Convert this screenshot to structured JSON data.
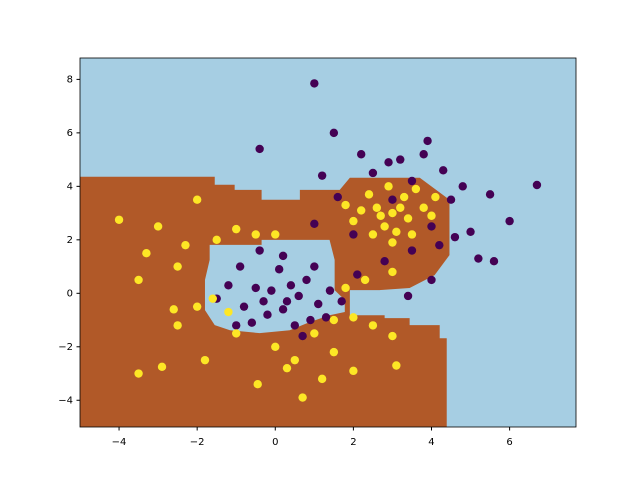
{
  "chart_data": {
    "type": "scatter",
    "xlim": [
      -5,
      7.7
    ],
    "ylim": [
      -5,
      8.8
    ],
    "xticks": [
      {
        "value": -4,
        "label": "−4"
      },
      {
        "value": -2,
        "label": "−2"
      },
      0,
      2,
      4,
      6
    ],
    "yticks": [
      {
        "value": -4,
        "label": "−4"
      },
      {
        "value": -2,
        "label": "−2"
      },
      0,
      2,
      4,
      6,
      8
    ],
    "background": "#a6cee3",
    "regions": [
      {
        "color": "#b15928",
        "polygons": [
          [
            [
              -5,
              4.36
            ],
            [
              -1.55,
              4.36
            ],
            [
              -1.55,
              4.06
            ],
            [
              -1.04,
              4.06
            ],
            [
              -1.04,
              3.87
            ],
            [
              -0.35,
              3.87
            ],
            [
              -0.35,
              3.5
            ],
            [
              0.63,
              3.5
            ],
            [
              0.63,
              3.87
            ],
            [
              1.65,
              3.87
            ],
            [
              1.91,
              4.32
            ],
            [
              3.7,
              4.32
            ],
            [
              4.46,
              3.5
            ],
            [
              4.46,
              1.43
            ],
            [
              4.08,
              0.68
            ],
            [
              3.44,
              0.2
            ],
            [
              2.67,
              0.12
            ],
            [
              1.91,
              0.12
            ],
            [
              1.91,
              -0.82
            ],
            [
              2.8,
              -0.82
            ],
            [
              2.8,
              -0.93
            ],
            [
              3.44,
              -0.93
            ],
            [
              3.44,
              -1.19
            ],
            [
              4.21,
              -1.19
            ],
            [
              4.21,
              -1.68
            ],
            [
              4.39,
              -1.68
            ],
            [
              4.39,
              -5
            ],
            [
              -5,
              -5
            ]
          ],
          [
            [
              -1.68,
              1.81
            ],
            [
              -0.35,
              1.81
            ],
            [
              -0.35,
              2
            ],
            [
              1.39,
              2
            ],
            [
              1.52,
              1.25
            ],
            [
              1.52,
              0.12
            ],
            [
              1.78,
              -0.25
            ],
            [
              1.78,
              -0.7
            ],
            [
              1.39,
              -0.82
            ],
            [
              0.88,
              -1.08
            ],
            [
              0.37,
              -1.38
            ],
            [
              -0.4,
              -1.49
            ],
            [
              -1.16,
              -1.38
            ],
            [
              -1.55,
              -1.19
            ],
            [
              -1.8,
              -0.63
            ],
            [
              -1.8,
              0.5
            ],
            [
              -1.68,
              1.25
            ]
          ]
        ]
      }
    ],
    "series": [
      {
        "color": "#440154",
        "x": [
          0.3,
          -0.5,
          0.8,
          1.1,
          -0.2,
          0.5,
          -0.8,
          0.1,
          -1.2,
          1.4,
          0.6,
          -0.1,
          0.9,
          -0.6,
          0.2,
          1,
          -1,
          0.4,
          -0.3,
          1.3,
          -1.5,
          0.7,
          -0.9,
          0.2,
          1.7,
          -0.4,
          3,
          2.5,
          3.5,
          4,
          2,
          4.5,
          3.2,
          1.6,
          5,
          4.8,
          2.2,
          3.8,
          5.5,
          4.2,
          1.2,
          5.2,
          3.5,
          2.8,
          4.6,
          3.9,
          1,
          5.6,
          2.9,
          4.3,
          6,
          1,
          6.7,
          -0.4,
          1.5,
          4,
          3.4,
          2.1
        ],
        "y": [
          -0.3,
          0.2,
          0.5,
          -0.4,
          -0.8,
          -1.2,
          -0.5,
          0.9,
          0.3,
          0.1,
          -0.1,
          0.1,
          -1,
          -1.1,
          1.4,
          1,
          -1.2,
          0.3,
          -0.3,
          -0.9,
          -0.2,
          -1.6,
          1,
          -0.6,
          -0.3,
          1.6,
          3.5,
          4.5,
          4.2,
          2.5,
          2.2,
          3.5,
          5,
          3.6,
          2.3,
          4,
          5.2,
          5.2,
          3.7,
          1.8,
          4.4,
          1.3,
          1.6,
          1.2,
          2.1,
          5.7,
          2.6,
          1.2,
          4.9,
          4.6,
          2.7,
          7.85,
          4.05,
          5.4,
          6,
          0.5,
          -0.1,
          0.7
        ]
      },
      {
        "color": "#fde725",
        "x": [
          -2,
          -3,
          -2.5,
          -1.5,
          -3.5,
          -2,
          -2.5,
          -1.8,
          -1,
          0,
          1,
          1.5,
          2,
          2.5,
          3,
          -1,
          -0.5,
          0,
          -2.3,
          -3.3,
          -1.6,
          1.8,
          2.3,
          3,
          1.5,
          0.5,
          -1.2,
          -4,
          -3.5,
          -2.9,
          0.7,
          -0.45,
          2,
          3.1,
          1.2,
          0.3,
          -2.6,
          3,
          2.6,
          3.4,
          2.8,
          3.3,
          2.2,
          3.8,
          2.5,
          3.1,
          3.6,
          2.4,
          4,
          2.9,
          3.5,
          2,
          2.7,
          3.2,
          1.8,
          4.1,
          3
        ],
        "y": [
          3.5,
          2.5,
          1,
          2,
          0.5,
          -0.5,
          -1.2,
          -2.5,
          -1.5,
          -2,
          -1.5,
          -1,
          -0.9,
          -1.2,
          -1.6,
          2.4,
          2.2,
          2.2,
          1.8,
          1.5,
          -0.2,
          0.2,
          0.5,
          0.8,
          -2.2,
          -2.5,
          -0.7,
          2.75,
          -3,
          -2.75,
          -3.9,
          -3.4,
          -2.9,
          -2.7,
          -3.2,
          -2.8,
          -0.6,
          3,
          3.2,
          2.8,
          2.5,
          3.6,
          3.1,
          3.2,
          2.2,
          2.3,
          3.9,
          3.7,
          2.9,
          4,
          2.2,
          2.7,
          2.9,
          3.2,
          3.3,
          3.6,
          1.9
        ]
      }
    ]
  }
}
